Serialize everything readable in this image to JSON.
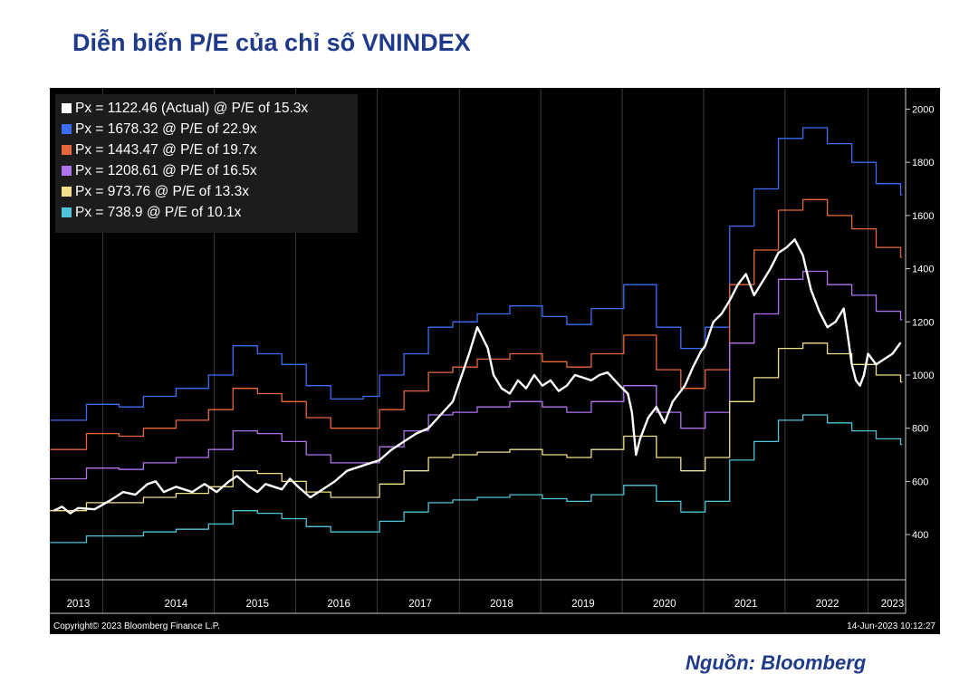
{
  "title": "Diễn biến P/E của chỉ số VNINDEX",
  "source_note": "Nguồn: Bloomberg",
  "footer": {
    "copyright": "Copyright© 2023 Bloomberg Finance L.P.",
    "timestamp": "14-Jun-2023 10:12:27"
  },
  "chart_data": {
    "type": "line",
    "title": "Diễn biến P/E của chỉ số VNINDEX",
    "xlabel": "",
    "ylabel": "",
    "x_range": [
      2012.95,
      2023.45
    ],
    "ylim": [
      230,
      2080
    ],
    "y_ticks": [
      400,
      600,
      800,
      1000,
      1200,
      1400,
      1600,
      1800,
      2000
    ],
    "x_ticks": [
      {
        "label": "2013",
        "at": 2013.3
      },
      {
        "label": "2014",
        "at": 2014.5
      },
      {
        "label": "2015",
        "at": 2015.5
      },
      {
        "label": "2016",
        "at": 2016.5
      },
      {
        "label": "2017",
        "at": 2017.5
      },
      {
        "label": "2018",
        "at": 2018.5
      },
      {
        "label": "2019",
        "at": 2019.5
      },
      {
        "label": "2020",
        "at": 2020.5
      },
      {
        "label": "2021",
        "at": 2021.5
      },
      {
        "label": "2022",
        "at": 2022.5
      },
      {
        "label": "2023",
        "at": 2023.3
      }
    ],
    "year_dividers": [
      2013.6,
      2014.97,
      2015.97,
      2016.97,
      2017.98,
      2018.98,
      2019.98,
      2020.98,
      2021.98,
      2023.0
    ],
    "legend_position": "top-left",
    "grid": false,
    "series": [
      {
        "name": "Px = 1122.46 (Actual) @ P/E of 15.3x",
        "color": "#ffffff",
        "kind": "actual",
        "points": [
          [
            2013.0,
            490
          ],
          [
            2013.1,
            505
          ],
          [
            2013.2,
            480
          ],
          [
            2013.3,
            500
          ],
          [
            2013.5,
            495
          ],
          [
            2013.7,
            530
          ],
          [
            2013.85,
            560
          ],
          [
            2014.0,
            550
          ],
          [
            2014.15,
            590
          ],
          [
            2014.25,
            600
          ],
          [
            2014.35,
            560
          ],
          [
            2014.5,
            580
          ],
          [
            2014.7,
            560
          ],
          [
            2014.85,
            590
          ],
          [
            2015.0,
            560
          ],
          [
            2015.15,
            600
          ],
          [
            2015.25,
            620
          ],
          [
            2015.4,
            580
          ],
          [
            2015.5,
            560
          ],
          [
            2015.6,
            590
          ],
          [
            2015.8,
            570
          ],
          [
            2015.9,
            610
          ],
          [
            2016.0,
            580
          ],
          [
            2016.15,
            540
          ],
          [
            2016.3,
            570
          ],
          [
            2016.45,
            600
          ],
          [
            2016.6,
            640
          ],
          [
            2016.8,
            660
          ],
          [
            2017.0,
            680
          ],
          [
            2017.15,
            720
          ],
          [
            2017.3,
            750
          ],
          [
            2017.45,
            780
          ],
          [
            2017.6,
            800
          ],
          [
            2017.75,
            850
          ],
          [
            2017.9,
            900
          ],
          [
            2018.0,
            990
          ],
          [
            2018.1,
            1080
          ],
          [
            2018.2,
            1180
          ],
          [
            2018.25,
            1150
          ],
          [
            2018.33,
            1100
          ],
          [
            2018.4,
            1000
          ],
          [
            2018.5,
            950
          ],
          [
            2018.6,
            930
          ],
          [
            2018.7,
            980
          ],
          [
            2018.8,
            950
          ],
          [
            2018.9,
            1000
          ],
          [
            2019.0,
            960
          ],
          [
            2019.1,
            980
          ],
          [
            2019.2,
            940
          ],
          [
            2019.3,
            960
          ],
          [
            2019.4,
            1000
          ],
          [
            2019.5,
            990
          ],
          [
            2019.6,
            980
          ],
          [
            2019.7,
            1000
          ],
          [
            2019.8,
            1010
          ],
          [
            2019.95,
            960
          ],
          [
            2020.05,
            930
          ],
          [
            2020.1,
            860
          ],
          [
            2020.15,
            700
          ],
          [
            2020.2,
            760
          ],
          [
            2020.3,
            840
          ],
          [
            2020.4,
            880
          ],
          [
            2020.5,
            820
          ],
          [
            2020.6,
            900
          ],
          [
            2020.75,
            960
          ],
          [
            2020.85,
            1030
          ],
          [
            2020.95,
            1090
          ],
          [
            2021.0,
            1110
          ],
          [
            2021.1,
            1200
          ],
          [
            2021.2,
            1230
          ],
          [
            2021.3,
            1280
          ],
          [
            2021.4,
            1340
          ],
          [
            2021.5,
            1380
          ],
          [
            2021.6,
            1300
          ],
          [
            2021.7,
            1350
          ],
          [
            2021.8,
            1400
          ],
          [
            2021.9,
            1460
          ],
          [
            2022.0,
            1480
          ],
          [
            2022.1,
            1510
          ],
          [
            2022.2,
            1450
          ],
          [
            2022.3,
            1320
          ],
          [
            2022.4,
            1240
          ],
          [
            2022.5,
            1180
          ],
          [
            2022.6,
            1200
          ],
          [
            2022.7,
            1250
          ],
          [
            2022.75,
            1150
          ],
          [
            2022.8,
            1040
          ],
          [
            2022.85,
            980
          ],
          [
            2022.9,
            960
          ],
          [
            2022.95,
            1000
          ],
          [
            2023.0,
            1080
          ],
          [
            2023.1,
            1040
          ],
          [
            2023.2,
            1060
          ],
          [
            2023.3,
            1080
          ],
          [
            2023.4,
            1122
          ]
        ]
      },
      {
        "name": "Px = 1678.32 @ P/E of 22.9x",
        "color": "#3b6ef5",
        "kind": "step",
        "points": [
          [
            2012.95,
            830
          ],
          [
            2013.4,
            890
          ],
          [
            2013.8,
            880
          ],
          [
            2014.1,
            920
          ],
          [
            2014.5,
            950
          ],
          [
            2014.9,
            1000
          ],
          [
            2015.2,
            1110
          ],
          [
            2015.5,
            1080
          ],
          [
            2015.8,
            1040
          ],
          [
            2016.1,
            960
          ],
          [
            2016.4,
            910
          ],
          [
            2016.8,
            920
          ],
          [
            2017.0,
            1000
          ],
          [
            2017.3,
            1080
          ],
          [
            2017.6,
            1180
          ],
          [
            2017.9,
            1200
          ],
          [
            2018.2,
            1230
          ],
          [
            2018.6,
            1260
          ],
          [
            2019.0,
            1220
          ],
          [
            2019.3,
            1190
          ],
          [
            2019.6,
            1250
          ],
          [
            2020.0,
            1340
          ],
          [
            2020.4,
            1180
          ],
          [
            2020.7,
            1100
          ],
          [
            2021.0,
            1180
          ],
          [
            2021.3,
            1560
          ],
          [
            2021.6,
            1700
          ],
          [
            2021.9,
            1890
          ],
          [
            2022.2,
            1930
          ],
          [
            2022.5,
            1870
          ],
          [
            2022.8,
            1800
          ],
          [
            2023.1,
            1720
          ],
          [
            2023.4,
            1678
          ]
        ]
      },
      {
        "name": "Px = 1443.47 @ P/E of 19.7x",
        "color": "#e8673a",
        "kind": "step",
        "points": [
          [
            2012.95,
            720
          ],
          [
            2013.4,
            780
          ],
          [
            2013.8,
            770
          ],
          [
            2014.1,
            800
          ],
          [
            2014.5,
            830
          ],
          [
            2014.9,
            870
          ],
          [
            2015.2,
            950
          ],
          [
            2015.5,
            930
          ],
          [
            2015.8,
            900
          ],
          [
            2016.1,
            840
          ],
          [
            2016.4,
            800
          ],
          [
            2016.8,
            800
          ],
          [
            2017.0,
            870
          ],
          [
            2017.3,
            940
          ],
          [
            2017.6,
            1010
          ],
          [
            2017.9,
            1030
          ],
          [
            2018.2,
            1060
          ],
          [
            2018.6,
            1080
          ],
          [
            2019.0,
            1050
          ],
          [
            2019.3,
            1030
          ],
          [
            2019.6,
            1080
          ],
          [
            2020.0,
            1150
          ],
          [
            2020.4,
            1020
          ],
          [
            2020.7,
            950
          ],
          [
            2021.0,
            1020
          ],
          [
            2021.3,
            1340
          ],
          [
            2021.6,
            1470
          ],
          [
            2021.9,
            1620
          ],
          [
            2022.2,
            1660
          ],
          [
            2022.5,
            1600
          ],
          [
            2022.8,
            1550
          ],
          [
            2023.1,
            1480
          ],
          [
            2023.4,
            1443
          ]
        ]
      },
      {
        "name": "Px = 1208.61 @ P/E of 16.5x",
        "color": "#b073f0",
        "kind": "step",
        "points": [
          [
            2012.95,
            610
          ],
          [
            2013.4,
            650
          ],
          [
            2013.8,
            645
          ],
          [
            2014.1,
            670
          ],
          [
            2014.5,
            690
          ],
          [
            2014.9,
            720
          ],
          [
            2015.2,
            790
          ],
          [
            2015.5,
            780
          ],
          [
            2015.8,
            750
          ],
          [
            2016.1,
            700
          ],
          [
            2016.4,
            670
          ],
          [
            2016.8,
            670
          ],
          [
            2017.0,
            730
          ],
          [
            2017.3,
            790
          ],
          [
            2017.6,
            850
          ],
          [
            2017.9,
            860
          ],
          [
            2018.2,
            880
          ],
          [
            2018.6,
            900
          ],
          [
            2019.0,
            880
          ],
          [
            2019.3,
            860
          ],
          [
            2019.6,
            900
          ],
          [
            2020.0,
            960
          ],
          [
            2020.4,
            860
          ],
          [
            2020.7,
            800
          ],
          [
            2021.0,
            860
          ],
          [
            2021.3,
            1120
          ],
          [
            2021.6,
            1230
          ],
          [
            2021.9,
            1360
          ],
          [
            2022.2,
            1390
          ],
          [
            2022.5,
            1340
          ],
          [
            2022.8,
            1300
          ],
          [
            2023.1,
            1240
          ],
          [
            2023.4,
            1208
          ]
        ]
      },
      {
        "name": "Px = 973.76 @ P/E of 13.3x",
        "color": "#f2e08a",
        "kind": "step",
        "points": [
          [
            2012.95,
            490
          ],
          [
            2013.4,
            520
          ],
          [
            2013.8,
            520
          ],
          [
            2014.1,
            540
          ],
          [
            2014.5,
            555
          ],
          [
            2014.9,
            580
          ],
          [
            2015.2,
            640
          ],
          [
            2015.5,
            630
          ],
          [
            2015.8,
            600
          ],
          [
            2016.1,
            560
          ],
          [
            2016.4,
            540
          ],
          [
            2016.8,
            540
          ],
          [
            2017.0,
            590
          ],
          [
            2017.3,
            640
          ],
          [
            2017.6,
            690
          ],
          [
            2017.9,
            700
          ],
          [
            2018.2,
            710
          ],
          [
            2018.6,
            720
          ],
          [
            2019.0,
            700
          ],
          [
            2019.3,
            690
          ],
          [
            2019.6,
            720
          ],
          [
            2020.0,
            770
          ],
          [
            2020.4,
            690
          ],
          [
            2020.7,
            640
          ],
          [
            2021.0,
            690
          ],
          [
            2021.3,
            900
          ],
          [
            2021.6,
            990
          ],
          [
            2021.9,
            1100
          ],
          [
            2022.2,
            1120
          ],
          [
            2022.5,
            1080
          ],
          [
            2022.8,
            1040
          ],
          [
            2023.1,
            1000
          ],
          [
            2023.4,
            974
          ]
        ]
      },
      {
        "name": "Px = 738.9 @ P/E of 10.1x",
        "color": "#4fc3d9",
        "kind": "step",
        "points": [
          [
            2012.95,
            370
          ],
          [
            2013.4,
            395
          ],
          [
            2013.8,
            395
          ],
          [
            2014.1,
            410
          ],
          [
            2014.5,
            420
          ],
          [
            2014.9,
            440
          ],
          [
            2015.2,
            490
          ],
          [
            2015.5,
            480
          ],
          [
            2015.8,
            460
          ],
          [
            2016.1,
            430
          ],
          [
            2016.4,
            410
          ],
          [
            2016.8,
            410
          ],
          [
            2017.0,
            450
          ],
          [
            2017.3,
            485
          ],
          [
            2017.6,
            520
          ],
          [
            2017.9,
            530
          ],
          [
            2018.2,
            540
          ],
          [
            2018.6,
            550
          ],
          [
            2019.0,
            535
          ],
          [
            2019.3,
            525
          ],
          [
            2019.6,
            550
          ],
          [
            2020.0,
            585
          ],
          [
            2020.4,
            525
          ],
          [
            2020.7,
            485
          ],
          [
            2021.0,
            525
          ],
          [
            2021.3,
            680
          ],
          [
            2021.6,
            750
          ],
          [
            2021.9,
            830
          ],
          [
            2022.2,
            850
          ],
          [
            2022.5,
            820
          ],
          [
            2022.8,
            790
          ],
          [
            2023.1,
            760
          ],
          [
            2023.4,
            739
          ]
        ]
      }
    ]
  }
}
